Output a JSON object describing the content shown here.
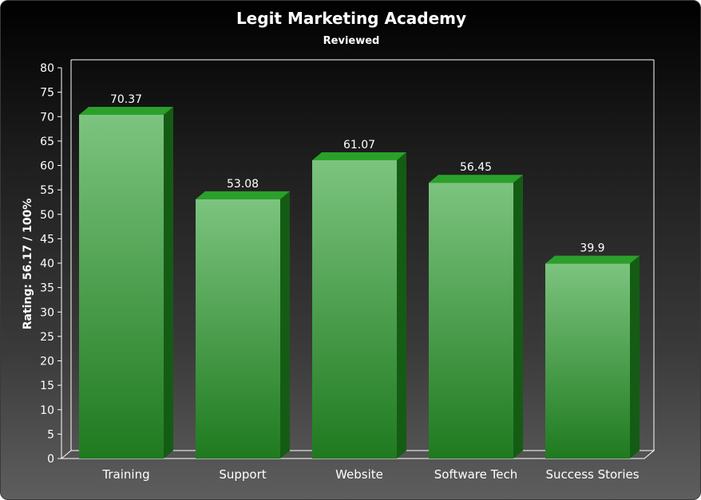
{
  "chart_data": {
    "type": "bar",
    "title": "Legit Marketing Academy",
    "subtitle": "Reviewed",
    "xlabel": "",
    "ylabel": "Rating: 56.17 / 100%",
    "categories": [
      "Training",
      "Support",
      "Website",
      "Software Tech",
      "Success Stories"
    ],
    "values": [
      70.37,
      53.08,
      61.07,
      56.45,
      39.9
    ],
    "data_labels": [
      "70.37",
      "53.08",
      "61.07",
      "56.45",
      "39.9"
    ],
    "ylim": [
      0,
      80
    ],
    "yticks": [
      0,
      5,
      10,
      15,
      20,
      25,
      30,
      35,
      40,
      45,
      50,
      55,
      60,
      65,
      70,
      75,
      80
    ],
    "grid": false,
    "style": "3d-bar",
    "colors": {
      "bar_light": "#7cc47f",
      "bar_dark": "#1f7a1f",
      "bar_top": "#2aa02a",
      "bar_side": "#145c14",
      "axis": "#ffffff",
      "text": "#ffffff"
    }
  }
}
